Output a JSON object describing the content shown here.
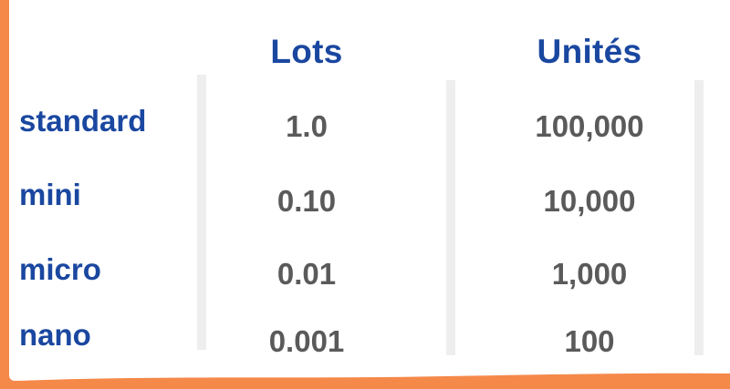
{
  "headers": {
    "lots": "Lots",
    "units": "Unités"
  },
  "rows": [
    {
      "label": "standard",
      "lots": "1.0",
      "units": "100,000"
    },
    {
      "label": "mini",
      "lots": "0.10",
      "units": "10,000"
    },
    {
      "label": "micro",
      "lots": "0.01",
      "units": "1,000"
    },
    {
      "label": "nano",
      "lots": "0.001",
      "units": "100"
    }
  ],
  "colors": {
    "header_blue": "#1a47a0",
    "value_gray": "#5a5a5a",
    "frame_orange": "#f5894a",
    "divider_gray": "#eeeeef"
  }
}
